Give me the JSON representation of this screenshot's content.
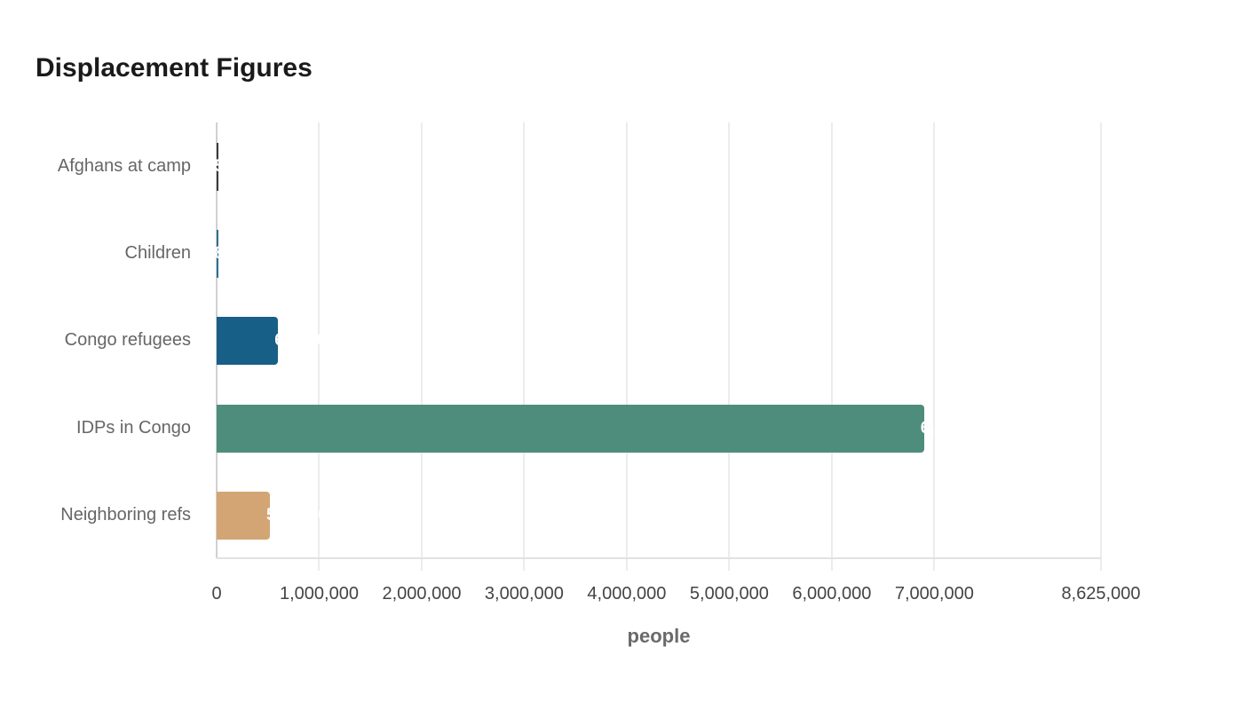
{
  "chart_data": {
    "type": "bar",
    "orientation": "horizontal",
    "title": "Displacement Figures",
    "xlabel": "people",
    "ylabel": "",
    "categories": [
      "Afghans at camp",
      "Children",
      "Congo refugees",
      "IDPs in Congo",
      "Neighboring refs"
    ],
    "values": [
      5000,
      8000,
      600000,
      6900000,
      520000
    ],
    "value_labels": [
      "5,000",
      "8,000",
      "600,000",
      "6,900,000",
      "520,000"
    ],
    "colors": [
      "#3a3a3a",
      "#2f6f93",
      "#175f86",
      "#4e8d7c",
      "#d4a574"
    ],
    "xlim": [
      0,
      8625000
    ],
    "x_ticks": [
      0,
      1000000,
      2000000,
      3000000,
      4000000,
      5000000,
      6000000,
      7000000,
      8625000
    ],
    "x_tick_labels": [
      "0",
      "1,000,000",
      "2,000,000",
      "3,000,000",
      "4,000,000",
      "5,000,000",
      "6,000,000",
      "7,000,000",
      "8,625,000"
    ],
    "grid": true,
    "legend": "none"
  },
  "title": "Displacement Figures",
  "xlabel": "people"
}
